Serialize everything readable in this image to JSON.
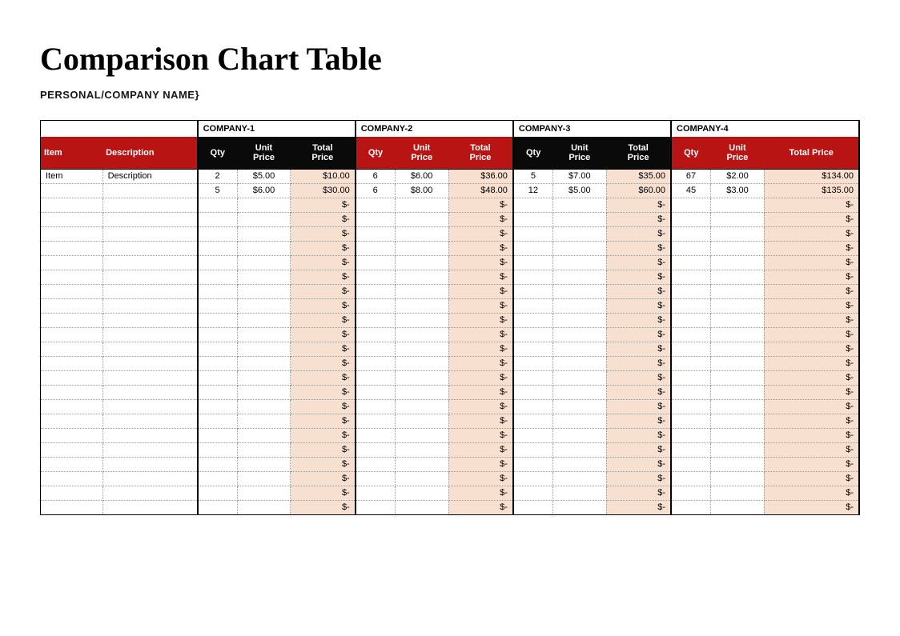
{
  "title": "Comparison Chart Table",
  "subtitle": "PERSONAL/COMPANY NAME}",
  "colors": {
    "header_red": "#b81414",
    "header_black": "#0a0a0a",
    "total_tint": "#f8e0d0",
    "border": "#000000",
    "dotted": "#999999",
    "text_white": "#ffffff",
    "text_black": "#000000"
  },
  "layout": {
    "item_col_width": 72,
    "desc_col_width": 110,
    "qty_col_width": 46,
    "unit_col_width": 62,
    "total_col_width": 75,
    "company4_total_col_width": 110,
    "empty_row_count": 22
  },
  "lead_columns": [
    {
      "key": "item",
      "label": "Item"
    },
    {
      "key": "description",
      "label": "Description"
    }
  ],
  "sub_headers": {
    "qty": "Qty",
    "unit_price": "Unit Price",
    "total_price": "Total Price"
  },
  "companies": [
    {
      "key": "c1",
      "label": "COMPANY-1"
    },
    {
      "key": "c2",
      "label": "COMPANY-2"
    },
    {
      "key": "c3",
      "label": "COMPANY-3"
    },
    {
      "key": "c4",
      "label": "COMPANY-4"
    }
  ],
  "rows": [
    {
      "item": "Item",
      "description": "Description",
      "c1": {
        "qty": "2",
        "unit": "$5.00",
        "total": "$10.00"
      },
      "c2": {
        "qty": "6",
        "unit": "$6.00",
        "total": "$36.00"
      },
      "c3": {
        "qty": "5",
        "unit": "$7.00",
        "total": "$35.00"
      },
      "c4": {
        "qty": "67",
        "unit": "$2.00",
        "total": "$134.00"
      }
    },
    {
      "item": "",
      "description": "",
      "c1": {
        "qty": "5",
        "unit": "$6.00",
        "total": "$30.00"
      },
      "c2": {
        "qty": "6",
        "unit": "$8.00",
        "total": "$48.00"
      },
      "c3": {
        "qty": "12",
        "unit": "$5.00",
        "total": "$60.00"
      },
      "c4": {
        "qty": "45",
        "unit": "$3.00",
        "total": "$135.00"
      }
    }
  ],
  "empty_total_placeholder": "$-"
}
